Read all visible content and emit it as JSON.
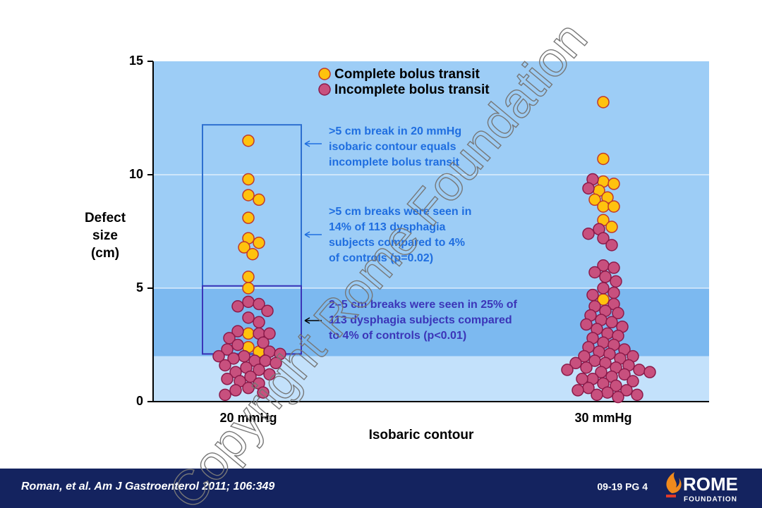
{
  "chart_data": {
    "type": "swarm",
    "categories": [
      "20 mmHg",
      "30 mmHg"
    ],
    "x_label": "Isobaric contour",
    "y_label": [
      "Defect",
      "size",
      "(cm)"
    ],
    "ylim": [
      0,
      15
    ],
    "yticks": [
      0,
      5,
      10,
      15
    ],
    "grid_lines": [
      5,
      10
    ],
    "bands": [
      {
        "from": 5,
        "to": 15,
        "color": "#9dcdf6"
      },
      {
        "from": 2,
        "to": 5,
        "color": "#7cb9f0"
      },
      {
        "from": 0,
        "to": 2,
        "color": "#c3e1fb"
      }
    ],
    "boxes": [
      {
        "ymin": 2.1,
        "ymax": 12.2,
        "color": "#2d6fd0"
      },
      {
        "ymin": 2.1,
        "ymax": 5.1,
        "color": "#3b35b8"
      }
    ],
    "series": [
      {
        "name": "Complete bolus transit",
        "color": "#ffc20e",
        "edge": "#c0392b",
        "values": [
          [
            11.5,
            9.8,
            9.1,
            8.9,
            8.1,
            7.2,
            7.0,
            6.8,
            6.5,
            5.5,
            5.0,
            3.0,
            2.4,
            2.2
          ],
          [
            13.2,
            10.7,
            9.7,
            9.6,
            9.3,
            9.0,
            8.9,
            8.6,
            8.6,
            8.0,
            7.7,
            4.5
          ]
        ]
      },
      {
        "name": "Incomplete bolus transit",
        "color": "#c8507e",
        "edge": "#8b1a4a",
        "values": [
          [
            4.4,
            4.3,
            4.2,
            4.0,
            3.7,
            3.5,
            3.1,
            3.0,
            3.0,
            2.8,
            2.6,
            2.5,
            2.3,
            2.2,
            2.1,
            2.0,
            2.0,
            1.9,
            1.8,
            1.8,
            1.7,
            1.6,
            1.5,
            1.4,
            1.3,
            1.2,
            1.1,
            1.0,
            0.9,
            0.8,
            0.6,
            0.5,
            0.4,
            0.3
          ],
          [
            9.8,
            9.4,
            7.6,
            7.4,
            7.2,
            6.9,
            6.0,
            5.9,
            5.7,
            5.5,
            5.3,
            5.0,
            4.8,
            4.7,
            4.3,
            4.2,
            4.0,
            3.9,
            3.8,
            3.6,
            3.5,
            3.4,
            3.3,
            3.2,
            3.0,
            2.9,
            2.8,
            2.6,
            2.5,
            2.4,
            2.3,
            2.2,
            2.1,
            2.0,
            2.0,
            1.9,
            1.8,
            1.7,
            1.7,
            1.6,
            1.5,
            1.5,
            1.4,
            1.4,
            1.3,
            1.3,
            1.2,
            1.1,
            1.0,
            1.0,
            0.9,
            0.8,
            0.7,
            0.6,
            0.5,
            0.5,
            0.4,
            0.3,
            0.3,
            0.2
          ]
        ]
      }
    ],
    "annotations": [
      {
        "lines": [
          ">5 cm break in 20 mmHg",
          "isobaric contour equals",
          "incomplete bolus transit"
        ]
      },
      {
        "lines": [
          ">5 cm breaks were seen in",
          "14% of 113 dysphagia",
          "subjects compared to 4%",
          "of controls (p=0.02)"
        ]
      },
      {
        "lines": [
          "2–5 cm breaks were seen in 25% of",
          "113 dysphagia subjects compared",
          "to 4% of controls (p<0.01)"
        ]
      }
    ]
  },
  "footer": {
    "citation": "Roman, et al. Am J Gastroenterol 2011; 106:349",
    "page": "09-19  PG 4",
    "logo_main": "ROME",
    "logo_sub": "FOUNDATION"
  },
  "watermark": "Copyright Rome Foundation"
}
